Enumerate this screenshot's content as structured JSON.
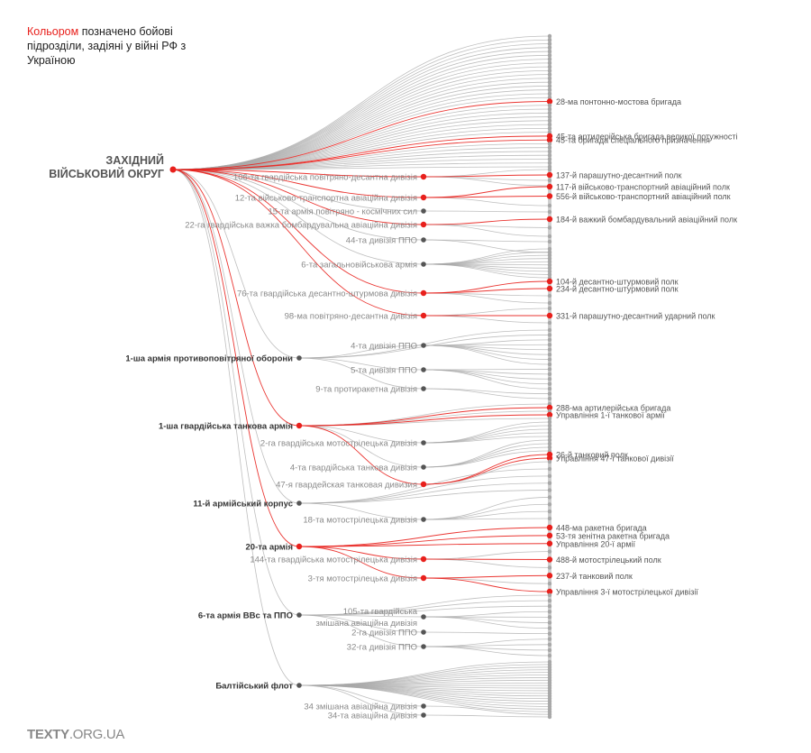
{
  "legend": {
    "highlight": "Кольором",
    "rest": " позначено бойові підрозділи, задіяні у війні РФ з Україною"
  },
  "brand": {
    "bold": "TEXTY",
    "rest": ".ORG.UA"
  },
  "colors": {
    "red": "#e8201c",
    "grey": "#a8a8a8",
    "dark": "#555555",
    "label": "#8a8a8a",
    "bold_label": "#333333"
  },
  "root": {
    "label": "ЗАХІДНИЙ\nВІЙСЬКОВИЙ ОКРУГ",
    "active": true
  },
  "direct_leaves": [
    {
      "label": "",
      "active": false
    },
    {
      "label": "",
      "active": false
    },
    {
      "label": "",
      "active": false
    },
    {
      "label": "",
      "active": false
    },
    {
      "label": "",
      "active": false
    },
    {
      "label": "",
      "active": false
    },
    {
      "label": "",
      "active": false
    },
    {
      "label": "",
      "active": false
    },
    {
      "label": "",
      "active": false
    },
    {
      "label": "",
      "active": false
    },
    {
      "label": "",
      "active": false
    },
    {
      "label": "",
      "active": false
    },
    {
      "label": "",
      "active": false
    },
    {
      "label": "",
      "active": false
    },
    {
      "label": "",
      "active": false
    },
    {
      "label": "",
      "active": false
    },
    {
      "label": "",
      "active": false
    },
    {
      "label": "28-ма понтонно-мостова бригада",
      "active": true
    },
    {
      "label": "",
      "active": false
    },
    {
      "label": "",
      "active": false
    },
    {
      "label": "",
      "active": false
    },
    {
      "label": "",
      "active": false
    },
    {
      "label": "",
      "active": false
    },
    {
      "label": "",
      "active": false
    },
    {
      "label": "",
      "active": false
    },
    {
      "label": "",
      "active": false
    },
    {
      "label": "45-та артилерійська бригада великої потужності",
      "active": true
    },
    {
      "label": "45-та бригада спеціального призначення",
      "active": true
    },
    {
      "label": "",
      "active": false
    },
    {
      "label": "",
      "active": false
    },
    {
      "label": "",
      "active": false
    },
    {
      "label": "",
      "active": false
    },
    {
      "label": "",
      "active": false
    },
    {
      "label": "",
      "active": false
    },
    {
      "label": "",
      "active": false
    }
  ],
  "divisions": [
    {
      "label": "106-та гвардійська повітряно-десантна дивізія",
      "bold": false,
      "active": true,
      "leaves": [
        {
          "label": "",
          "active": false
        },
        {
          "label": "137-й парашутно-десантний полк",
          "active": true
        },
        {
          "label": "",
          "active": false
        },
        {
          "label": "",
          "active": false
        }
      ]
    },
    {
      "label": "12-та військово-транспортна авіаційна дивізія",
      "bold": false,
      "active": true,
      "leaves": [
        {
          "label": "117-й військово-транспортний авіаційний полк",
          "active": true
        },
        {
          "label": "556-й військово-транспортний авіаційний полк",
          "active": true
        },
        {
          "label": "",
          "active": false
        }
      ]
    },
    {
      "label": "15-та армія повітряно - космічних сил",
      "bold": false,
      "active": false,
      "leaves": [
        {
          "label": "",
          "active": false
        }
      ]
    },
    {
      "label": "22-га гвардійська важка бомбардувальна авіаційна дивізія",
      "bold": false,
      "active": true,
      "leaves": [
        {
          "label": "184-й важкий бомбардувальний авіаційний полк",
          "active": true
        },
        {
          "label": "",
          "active": false
        },
        {
          "label": "",
          "active": false
        }
      ]
    },
    {
      "label": "44-та дивізія ППО",
      "bold": false,
      "active": false,
      "leaves": [
        {
          "label": "",
          "active": false
        },
        {
          "label": "",
          "active": false
        }
      ]
    },
    {
      "label": "6-та загальновійськова армія",
      "bold": false,
      "active": false,
      "leaves": [
        {
          "label": "",
          "active": false
        },
        {
          "label": "",
          "active": false
        },
        {
          "label": "",
          "active": false
        },
        {
          "label": "",
          "active": false
        },
        {
          "label": "",
          "active": false
        },
        {
          "label": "",
          "active": false
        },
        {
          "label": "",
          "active": false
        },
        {
          "label": "",
          "active": false
        },
        {
          "label": "",
          "active": false
        },
        {
          "label": "",
          "active": false
        }
      ]
    },
    {
      "label": "76-та гвардійська десантно-штурмова дивізія",
      "bold": false,
      "active": true,
      "leaves": [
        {
          "label": "104-й десантно-штурмовий полк",
          "active": true
        },
        {
          "label": "234-й десантно-штурмовий полк",
          "active": true
        },
        {
          "label": "",
          "active": false
        },
        {
          "label": "",
          "active": false
        }
      ]
    },
    {
      "label": "98-ма повітряно-десантна дивізія",
      "bold": false,
      "active": true,
      "leaves": [
        {
          "label": "",
          "active": false
        },
        {
          "label": "331-й парашутно-десантний ударний полк",
          "active": true
        },
        {
          "label": "",
          "active": false
        }
      ]
    },
    {
      "label": "1-ша армія противоповітряної оборони",
      "bold": true,
      "active": false,
      "subs": [
        {
          "label": "4-та дивізія ППО",
          "active": false,
          "leaves": [
            {
              "label": "",
              "active": false
            },
            {
              "label": "",
              "active": false
            },
            {
              "label": "",
              "active": false
            },
            {
              "label": "",
              "active": false
            },
            {
              "label": "",
              "active": false
            },
            {
              "label": "",
              "active": false
            }
          ]
        },
        {
          "label": "5-та дивізія ППО",
          "active": false,
          "leaves": [
            {
              "label": "",
              "active": false
            },
            {
              "label": "",
              "active": false
            },
            {
              "label": "",
              "active": false
            },
            {
              "label": "",
              "active": false
            },
            {
              "label": "",
              "active": false
            }
          ]
        },
        {
          "label": "9-та протиракетна дивізія",
          "active": false,
          "leaves": [
            {
              "label": "",
              "active": false
            },
            {
              "label": "",
              "active": false
            }
          ]
        }
      ],
      "leaves": [
        {
          "label": "",
          "active": false
        },
        {
          "label": "",
          "active": false
        }
      ]
    },
    {
      "label": "1-ша гвардійська танкова армія",
      "bold": true,
      "active": true,
      "subs": [
        {
          "label": "2-га гвардійська мотострілецька дивізія",
          "active": false,
          "leaves": [
            {
              "label": "",
              "active": false
            },
            {
              "label": "",
              "active": false
            },
            {
              "label": "",
              "active": false
            },
            {
              "label": "",
              "active": false
            },
            {
              "label": "",
              "active": false
            }
          ]
        },
        {
          "label": "4-та гвардійська танкова дивізія",
          "active": false,
          "leaves": [
            {
              "label": "",
              "active": false
            },
            {
              "label": "",
              "active": false
            },
            {
              "label": "",
              "active": false
            },
            {
              "label": "",
              "active": false
            }
          ]
        },
        {
          "label": "47-я гвардейская танковая дивизия",
          "active": true,
          "leaves": [
            {
              "label": "26-й танковий полк",
              "active": true
            },
            {
              "label": "Управління 47-ї танкової дивізії",
              "active": true
            },
            {
              "label": "",
              "active": false
            }
          ]
        }
      ],
      "leaves": [
        {
          "label": "",
          "active": false
        },
        {
          "label": "288-ма артилерійська бригада",
          "active": true
        },
        {
          "label": "",
          "active": false
        },
        {
          "label": "Управління 1-ї танкової армії",
          "active": true
        },
        {
          "label": "",
          "active": false
        }
      ]
    },
    {
      "label": "11-й армійський корпус",
      "bold": true,
      "active": false,
      "subs": [
        {
          "label": "18-та мотострілецька дивізія",
          "active": false,
          "leaves": [
            {
              "label": "",
              "active": false
            },
            {
              "label": "",
              "active": false
            },
            {
              "label": "",
              "active": false
            },
            {
              "label": "",
              "active": false
            }
          ]
        }
      ],
      "leaves": [
        {
          "label": "",
          "active": false
        },
        {
          "label": "",
          "active": false
        },
        {
          "label": "",
          "active": false
        },
        {
          "label": "",
          "active": false
        }
      ]
    },
    {
      "label": "20-та армія",
      "bold": true,
      "active": true,
      "subs": [
        {
          "label": "144-та гвардійська мотострілецька дивізія",
          "active": true,
          "leaves": [
            {
              "label": "",
              "active": false
            },
            {
              "label": "488-й мотострілецький полк",
              "active": true
            },
            {
              "label": "",
              "active": false
            }
          ]
        },
        {
          "label": "3-тя мотострілецька дивізія",
          "active": true,
          "leaves": [
            {
              "label": "237-й танковий полк",
              "active": true
            },
            {
              "label": "",
              "active": false
            },
            {
              "label": "Управління 3-ї мотострілецької дивізії",
              "active": true
            }
          ]
        }
      ],
      "leaves": [
        {
          "label": "448-ма ракетна бригада",
          "active": true
        },
        {
          "label": "53-тя зенітна ракетна бригада",
          "active": true
        },
        {
          "label": "Управління 20-ї армії",
          "active": true
        }
      ]
    },
    {
      "label": "6-та армія ВВс та ППО",
      "bold": true,
      "active": false,
      "subs": [
        {
          "label": "105-та гвардійська\nзмішана авіаційна дивізія",
          "active": false,
          "leaves": [
            {
              "label": "",
              "active": false
            },
            {
              "label": "",
              "active": false
            },
            {
              "label": "",
              "active": false
            },
            {
              "label": "",
              "active": false
            }
          ]
        },
        {
          "label": "2-га дивізія ППО",
          "active": false,
          "leaves": [
            {
              "label": "",
              "active": false
            }
          ]
        },
        {
          "label": "32-га дивізія ППО",
          "active": false,
          "leaves": [
            {
              "label": "",
              "active": false
            },
            {
              "label": "",
              "active": false
            },
            {
              "label": "",
              "active": false
            },
            {
              "label": "",
              "active": false
            }
          ]
        }
      ],
      "leaves": [
        {
          "label": "",
          "active": false
        },
        {
          "label": "",
          "active": false
        },
        {
          "label": "",
          "active": false
        }
      ]
    },
    {
      "label": "Балтійський флот",
      "bold": true,
      "active": false,
      "subs": [
        {
          "label": "34 змішана авіаційна дивізія",
          "active": false,
          "leaves": [
            {
              "label": "",
              "active": false
            }
          ]
        },
        {
          "label": "34-та авіаційна дивізія",
          "active": false,
          "leaves": [
            {
              "label": "",
              "active": false
            }
          ]
        }
      ],
      "leaves": [
        {
          "label": "",
          "active": false
        },
        {
          "label": "",
          "active": false
        },
        {
          "label": "",
          "active": false
        },
        {
          "label": "",
          "active": false
        },
        {
          "label": "",
          "active": false
        },
        {
          "label": "",
          "active": false
        },
        {
          "label": "",
          "active": false
        },
        {
          "label": "",
          "active": false
        },
        {
          "label": "",
          "active": false
        },
        {
          "label": "",
          "active": false
        },
        {
          "label": "",
          "active": false
        },
        {
          "label": "",
          "active": false
        },
        {
          "label": "",
          "active": false
        },
        {
          "label": "",
          "active": false
        },
        {
          "label": "",
          "active": false
        },
        {
          "label": "",
          "active": false
        },
        {
          "label": "",
          "active": false
        },
        {
          "label": "",
          "active": false
        },
        {
          "label": "",
          "active": false
        },
        {
          "label": "",
          "active": false
        }
      ]
    }
  ]
}
